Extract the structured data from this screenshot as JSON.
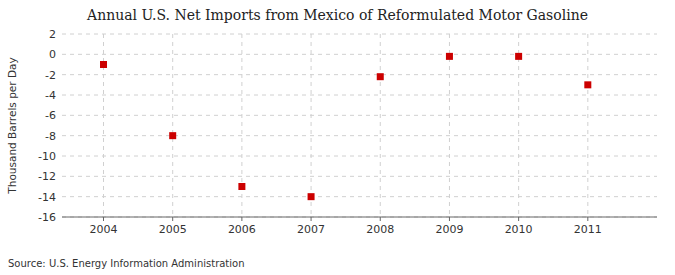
{
  "chart_data": {
    "type": "scatter",
    "title": "Annual U.S. Net Imports from Mexico of Reformulated Motor Gasoline",
    "ylabel": "Thousand Barrels per Day",
    "source": "Source: U.S. Energy Information Administration",
    "x": [
      2004,
      2005,
      2006,
      2007,
      2008,
      2009,
      2010,
      2011
    ],
    "values": [
      -1.0,
      -8.0,
      -13.0,
      -14.0,
      -2.2,
      -0.2,
      -0.2,
      -3.0
    ],
    "xlim": [
      2003.4,
      2012.0
    ],
    "xticks": [
      2004,
      2005,
      2006,
      2007,
      2008,
      2009,
      2010,
      2011
    ],
    "ylim": [
      -16,
      2
    ],
    "yticks": [
      2,
      0,
      -2,
      -4,
      -6,
      -8,
      -10,
      -12,
      -14,
      -16
    ],
    "color": "#cc0000",
    "marker": "square",
    "grid": true
  }
}
